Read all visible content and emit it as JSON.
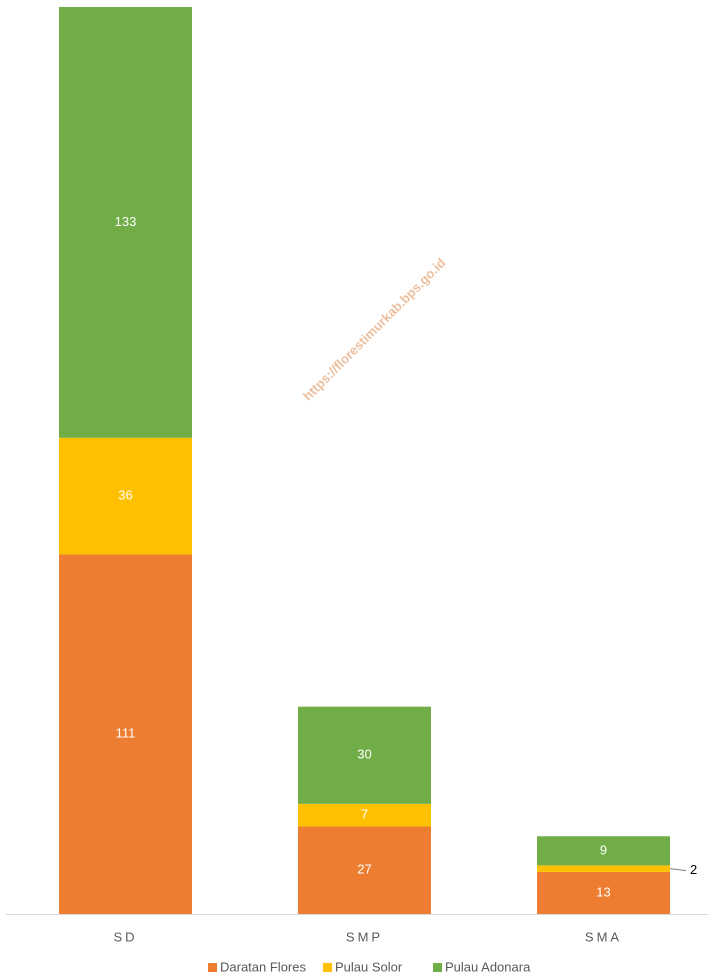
{
  "chart_data": {
    "type": "stacked_bar",
    "categories": [
      "SD",
      "SMP",
      "SMA"
    ],
    "series": [
      {
        "name": "Daratan Flores",
        "color": "#ED7D31",
        "values": [
          111,
          27,
          13
        ]
      },
      {
        "name": "Pulau Solor",
        "color": "#FFC000",
        "values": [
          36,
          7,
          2
        ]
      },
      {
        "name": "Pulau Adonara",
        "color": "#70AD47",
        "values": [
          133,
          30,
          9
        ]
      }
    ],
    "legend": "bottom",
    "watermark": "https://florestimurkab.bps.go.id"
  }
}
